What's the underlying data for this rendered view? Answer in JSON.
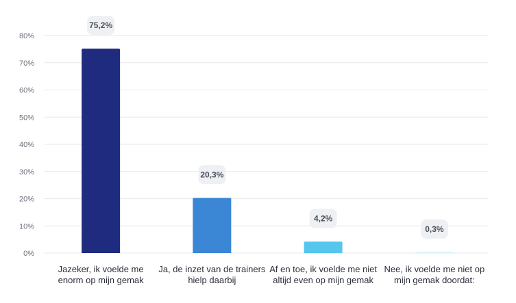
{
  "chart_data": {
    "type": "bar",
    "title": "",
    "xlabel": "",
    "ylabel": "",
    "categories": [
      [
        "Jazeker, ik voelde me",
        "enorm op mijn gemak"
      ],
      [
        "Ja, de inzet van de trainers",
        "hielp daarbij"
      ],
      [
        "Af en toe, ik voelde me niet",
        "altijd even op mijn gemak"
      ],
      [
        "Nee, ik voelde me niet op",
        "mijn gemak doordat:"
      ]
    ],
    "values": [
      75.2,
      20.3,
      4.2,
      0.3
    ],
    "value_labels": [
      "75,2%",
      "20,3%",
      "4,2%",
      "0,3%"
    ],
    "colors": [
      "#1f2b7e",
      "#3b87d6",
      "#56c6ec",
      "#cdeefb"
    ],
    "ylim": [
      0,
      80
    ],
    "yticks": [
      0,
      10,
      20,
      30,
      40,
      50,
      60,
      70,
      80
    ],
    "ytick_labels": [
      "0%",
      "10%",
      "20%",
      "30%",
      "40%",
      "50%",
      "60%",
      "70%",
      "80%"
    ],
    "grid": true,
    "legend": "none"
  }
}
